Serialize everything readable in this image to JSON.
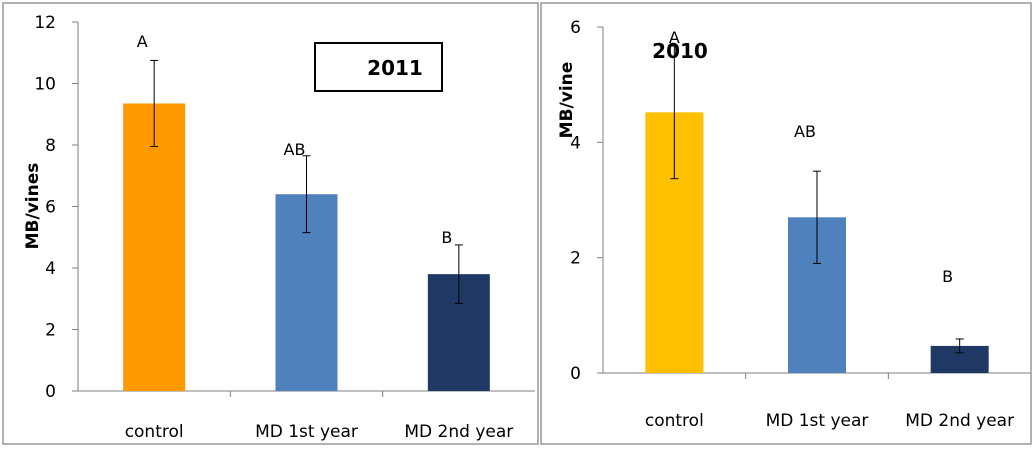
{
  "chart_data": [
    {
      "type": "bar",
      "title": "2011",
      "title_boxed": true,
      "ylabel": "MB/vines",
      "xlabel": "",
      "categories": [
        "control",
        "MD 1st year",
        "MD 2nd year"
      ],
      "values": [
        9.35,
        6.4,
        3.8
      ],
      "error": [
        1.4,
        1.25,
        0.95
      ],
      "significance": [
        "A",
        "AB",
        "B"
      ],
      "colors": [
        "#FF9900",
        "#4F81BD",
        "#1F3864"
      ],
      "ylim": [
        0,
        12
      ],
      "yticks": [
        "0",
        "2",
        "4",
        "6",
        "8",
        "10",
        "12"
      ],
      "grid": false,
      "legend": "none"
    },
    {
      "type": "bar",
      "title": "2010",
      "title_boxed": false,
      "ylabel": "MB/vine",
      "xlabel": "",
      "categories": [
        "control",
        "MD 1st year",
        "MD 2nd year"
      ],
      "values": [
        4.52,
        2.7,
        0.47
      ],
      "error": [
        1.15,
        0.8,
        0.12
      ],
      "significance": [
        "A",
        "AB",
        "B"
      ],
      "colors": [
        "#FFC000",
        "#4F81BD",
        "#1F3864"
      ],
      "ylim": [
        0,
        6
      ],
      "yticks": [
        "0",
        "2",
        "4",
        "6"
      ],
      "grid": false,
      "legend": "none"
    }
  ]
}
